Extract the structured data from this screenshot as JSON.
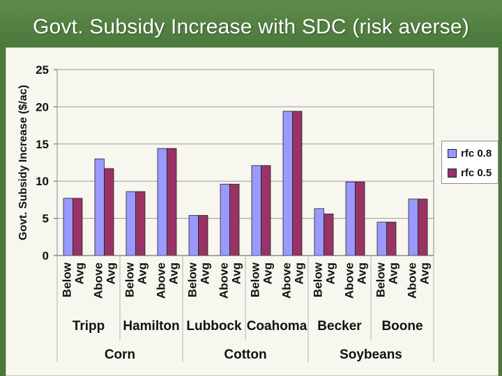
{
  "slide": {
    "title": "Govt. Subsidy Increase with SDC (risk averse)"
  },
  "colors": {
    "series1": "#9999ff",
    "series2": "#993366",
    "gridline": "#9a9a9a",
    "plot_bg": "#f7f7ef"
  },
  "chart_data": {
    "type": "bar",
    "ylabel": "Govt. Subsidy Increase ($/ac)",
    "ylim": [
      0,
      25
    ],
    "yticks": [
      0,
      5,
      10,
      15,
      20,
      25
    ],
    "grid": true,
    "legend_position": "right",
    "categories": [
      "Below Avg",
      "Above Avg",
      "Below Avg",
      "Above Avg",
      "Below Avg",
      "Above Avg",
      "Below Avg",
      "Above Avg",
      "Below Avg",
      "Above Avg",
      "Below Avg",
      "Above Avg"
    ],
    "category_lines": [
      [
        "Below",
        "Avg"
      ],
      [
        "Above",
        "Avg"
      ],
      [
        "Below",
        "Avg"
      ],
      [
        "Above",
        "Avg"
      ],
      [
        "Below",
        "Avg"
      ],
      [
        "Above",
        "Avg"
      ],
      [
        "Below",
        "Avg"
      ],
      [
        "Above",
        "Avg"
      ],
      [
        "Below",
        "Avg"
      ],
      [
        "Above",
        "Avg"
      ],
      [
        "Below",
        "Avg"
      ],
      [
        "Above",
        "Avg"
      ]
    ],
    "locations": [
      "Tripp",
      "Hamilton",
      "Lubbock",
      "Coahoma",
      "Becker",
      "Boone"
    ],
    "crops": [
      "Corn",
      "Cotton",
      "Soybeans"
    ],
    "series": [
      {
        "name": "rfc 0.8",
        "values": [
          7.7,
          13.0,
          8.6,
          14.4,
          5.4,
          9.6,
          12.1,
          19.4,
          6.3,
          9.9,
          4.5,
          7.6
        ]
      },
      {
        "name": "rfc 0.5",
        "values": [
          7.7,
          11.7,
          8.6,
          14.4,
          5.4,
          9.6,
          12.1,
          19.4,
          5.6,
          9.9,
          4.5,
          7.6
        ]
      }
    ]
  }
}
